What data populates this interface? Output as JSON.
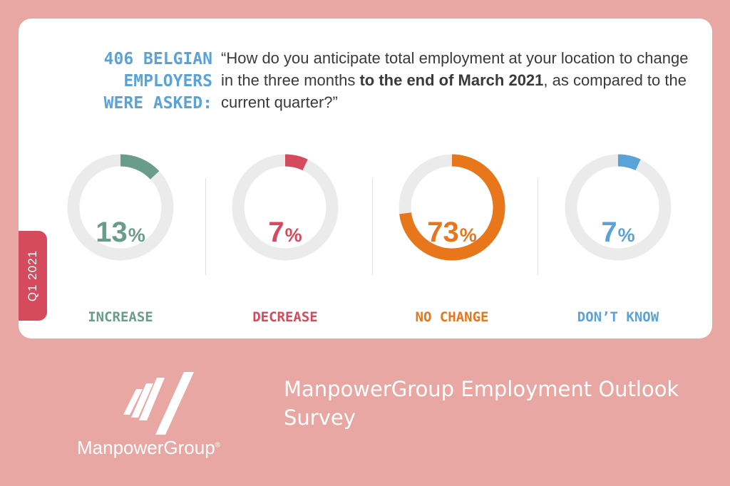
{
  "header": {
    "asked_lines": [
      "406 BELGIAN",
      "EMPLOYERS",
      "WERE ASKED:"
    ],
    "question_part1": "“How do you anticipate total employment at your location to change in the three months ",
    "question_bold": "to the end of March 2021",
    "question_part2": ", as compared to the current quarter?”"
  },
  "badge": {
    "label": "Q1 2021"
  },
  "chart_data": {
    "type": "donut",
    "series": [
      {
        "name": "INCREASE",
        "value": 13,
        "display": "13",
        "unit": "%",
        "color": "#6a9c8c"
      },
      {
        "name": "DECREASE",
        "value": 7,
        "display": "7",
        "unit": "%",
        "color": "#d54a5d"
      },
      {
        "name": "NO CHANGE",
        "value": 73,
        "display": "73",
        "unit": "%",
        "color": "#e8771c"
      },
      {
        "name": "DON’T KNOW",
        "value": 7,
        "display": "7",
        "unit": "%",
        "color": "#5aa3d8"
      }
    ],
    "track_color": "#ebebeb"
  },
  "footer": {
    "brand": "ManpowerGroup",
    "brand_mark": "®",
    "title": "ManpowerGroup Employment Outlook Survey"
  }
}
